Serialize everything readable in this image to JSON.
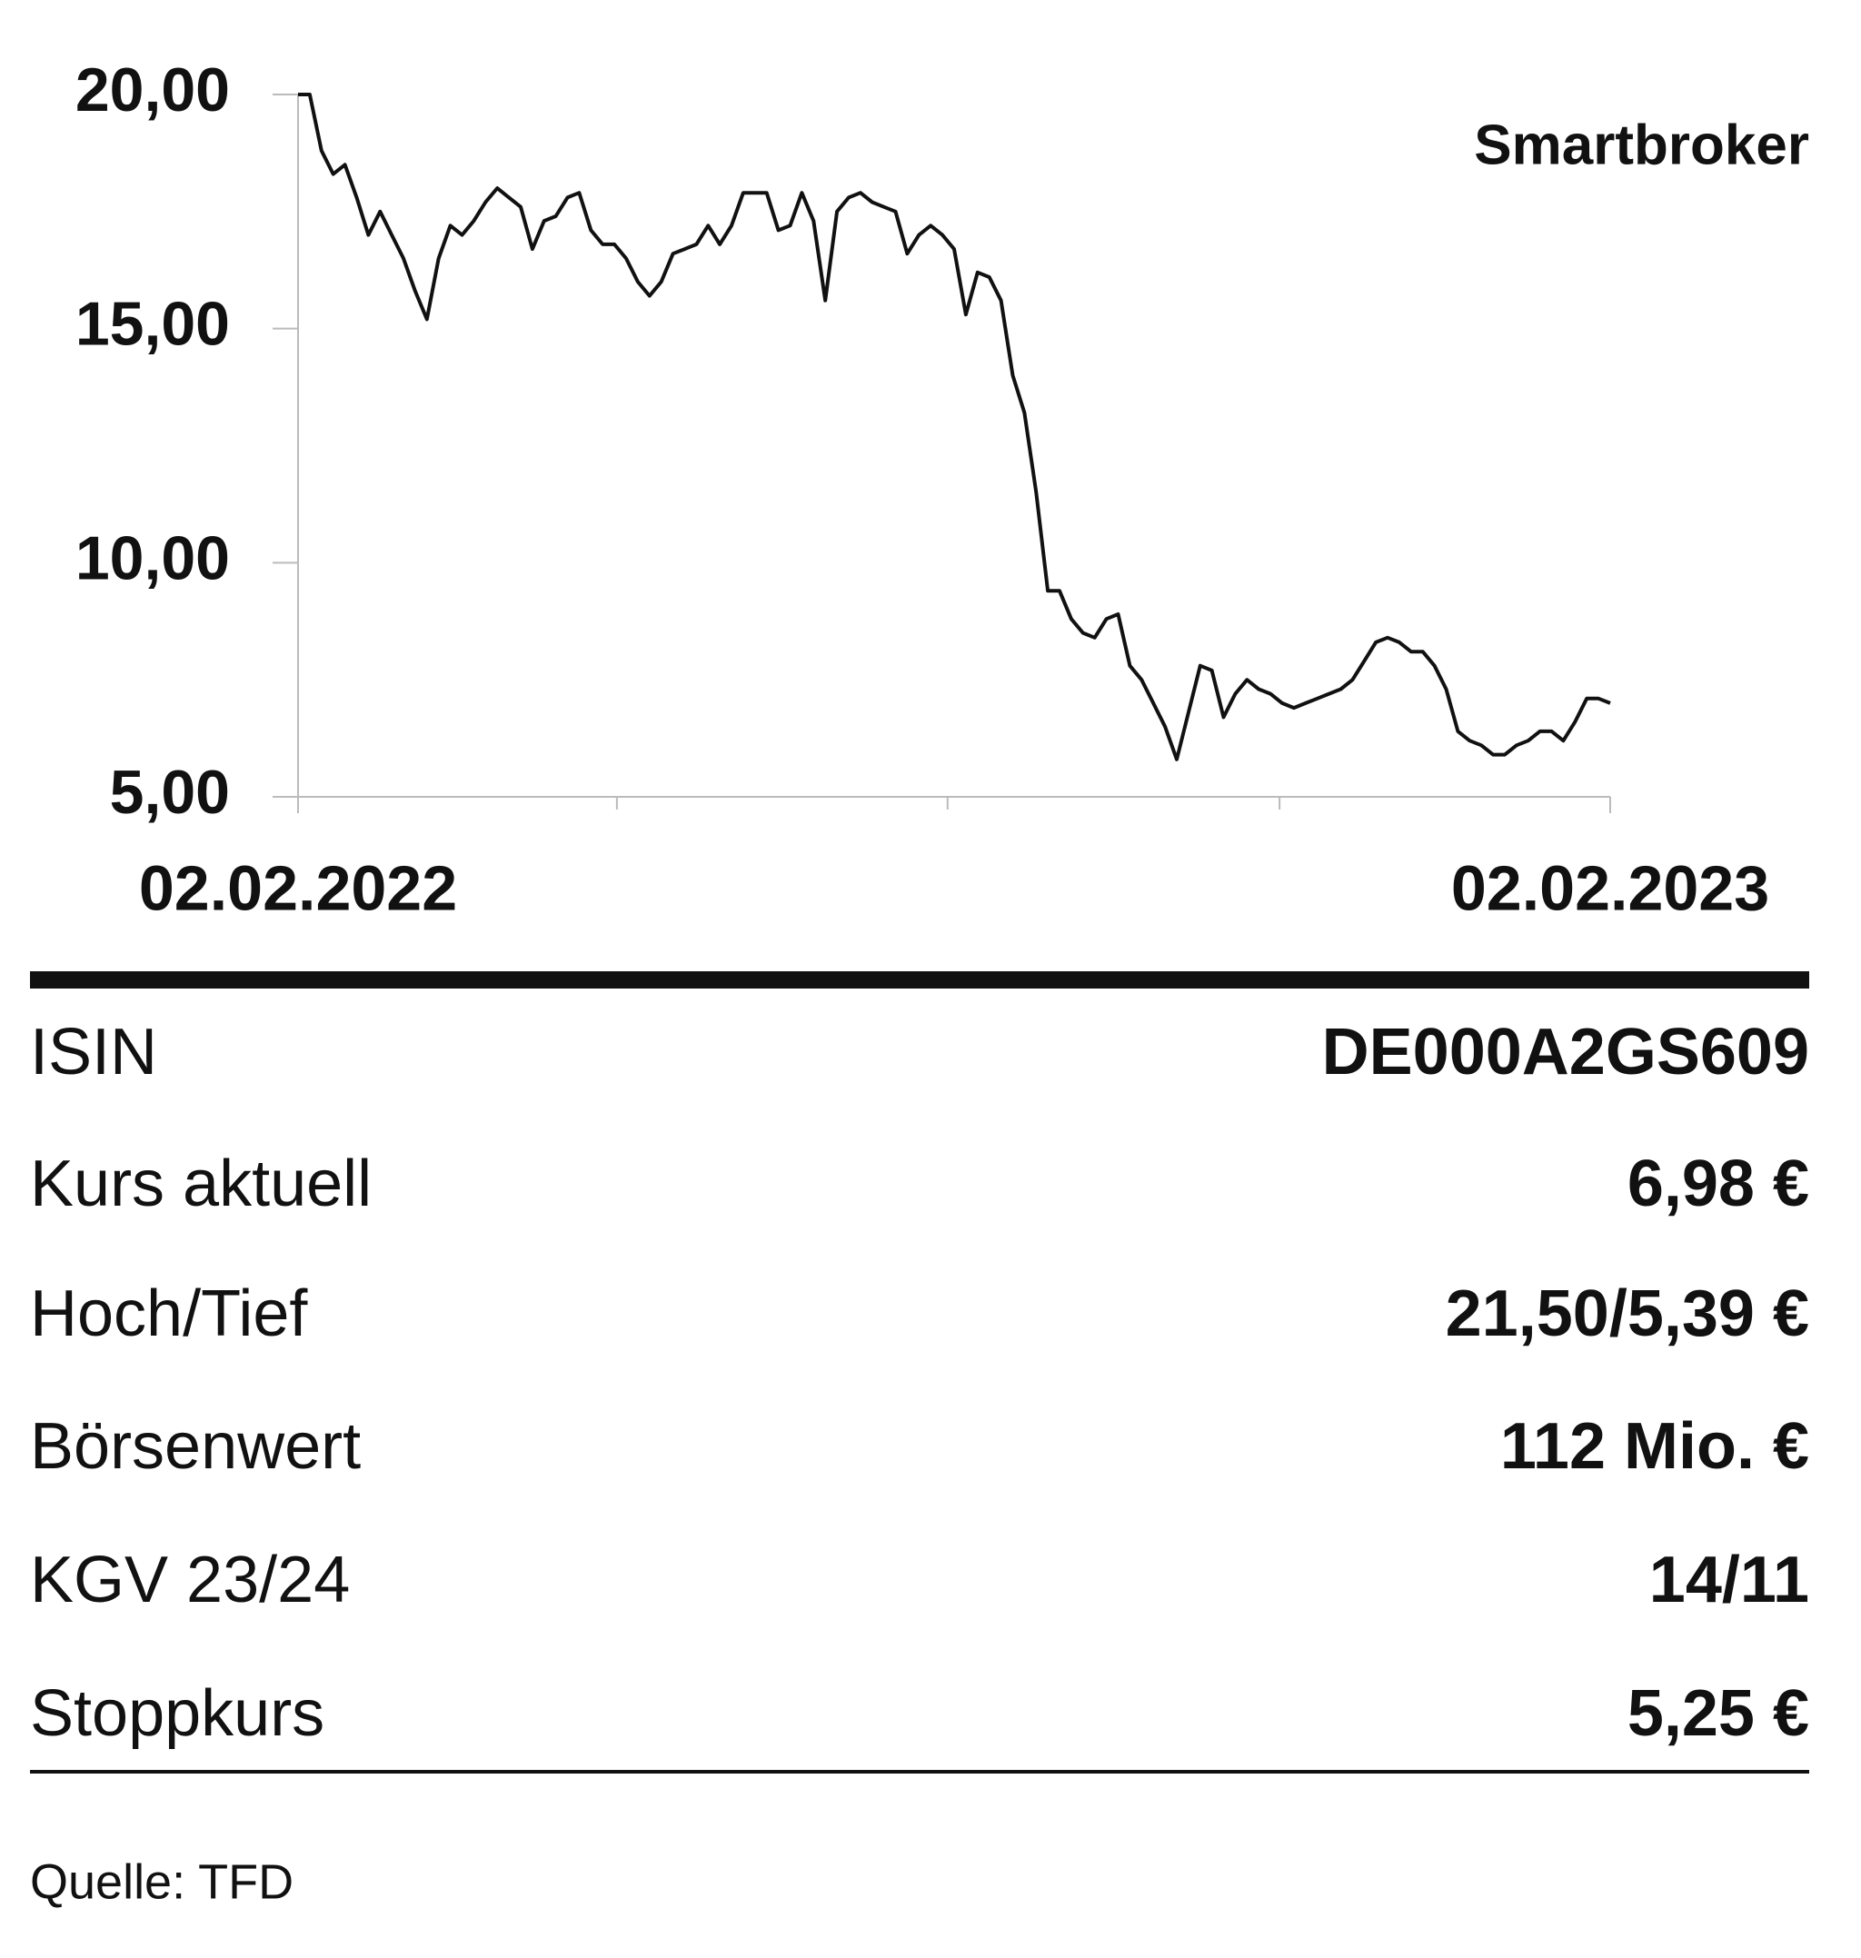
{
  "chart_data": {
    "type": "line",
    "title": "Smartbroker",
    "color": "#111111",
    "values": [
      20.0,
      20.0,
      18.8,
      18.3,
      18.5,
      17.8,
      17.0,
      17.5,
      17.0,
      16.5,
      15.8,
      15.2,
      16.5,
      17.2,
      17.0,
      17.3,
      17.7,
      18.0,
      17.8,
      17.6,
      16.7,
      17.3,
      17.4,
      17.8,
      17.9,
      17.1,
      16.8,
      16.8,
      16.5,
      16.0,
      15.7,
      16.0,
      16.6,
      16.7,
      16.8,
      17.2,
      16.8,
      17.2,
      17.9,
      17.9,
      17.9,
      17.1,
      17.2,
      17.9,
      17.3,
      15.6,
      17.5,
      17.8,
      17.9,
      17.7,
      17.6,
      17.5,
      16.6,
      17.0,
      17.2,
      17.0,
      16.7,
      15.3,
      16.2,
      16.1,
      15.6,
      14.0,
      13.2,
      11.5,
      9.4,
      9.4,
      8.8,
      8.5,
      8.4,
      8.8,
      8.9,
      7.8,
      7.5,
      7.0,
      6.5,
      5.8,
      6.8,
      7.8,
      7.7,
      6.7,
      7.2,
      7.5,
      7.3,
      7.2,
      7.0,
      6.9,
      7.0,
      7.1,
      7.2,
      7.3,
      7.5,
      7.9,
      8.3,
      8.4,
      8.3,
      8.1,
      8.1,
      7.8,
      7.3,
      6.4,
      6.2,
      6.1,
      5.9,
      5.9,
      6.1,
      6.2,
      6.4,
      6.4,
      6.2,
      6.6,
      7.1,
      7.1,
      7.0
    ],
    "xlim": [
      0,
      112
    ],
    "xticks": [
      {
        "value": 0,
        "label": "02.02.2022"
      },
      {
        "value": 112,
        "label": "02.02.2023"
      }
    ],
    "ylim": [
      5,
      20
    ],
    "yticks": [
      {
        "value": 5,
        "label": "5,00"
      },
      {
        "value": 10,
        "label": "10,00"
      },
      {
        "value": 15,
        "label": "15,00"
      },
      {
        "value": 20,
        "label": "20,00"
      }
    ]
  },
  "table": {
    "rows": [
      [
        "ISIN",
        "DE000A2GS609"
      ],
      [
        "Kurs aktuell",
        "6,98 €"
      ],
      [
        "Hoch/Tief",
        "21,50/5,39 €"
      ],
      [
        "Börsenwert",
        "112 Mio. €"
      ],
      [
        "KGV 23/24",
        "14/11"
      ],
      [
        "Stoppkurs",
        "5,25 €"
      ]
    ]
  },
  "source": "Quelle: TFD"
}
